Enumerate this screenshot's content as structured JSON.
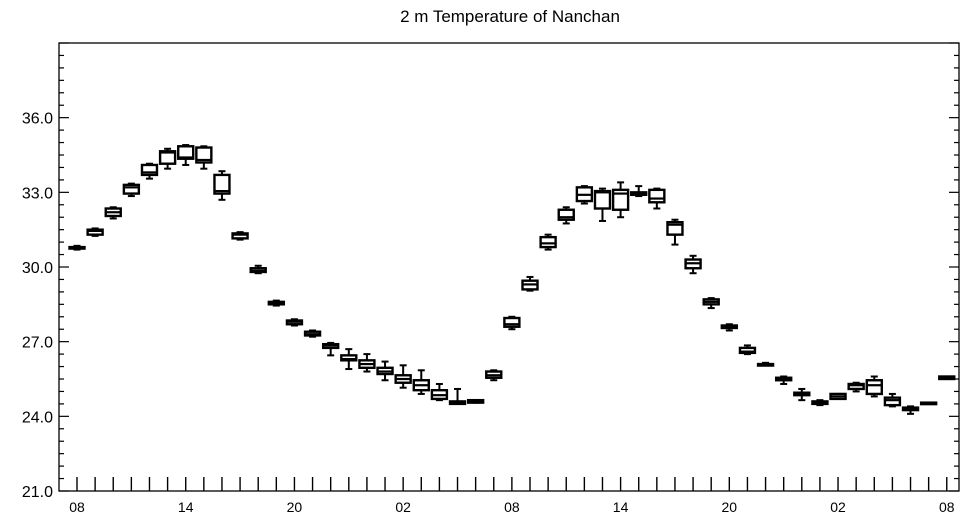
{
  "chart_data": {
    "type": "boxplot",
    "title": "2 m Temperature of Nanchan",
    "xlabel": "",
    "ylabel": "",
    "ylim": [
      21.0,
      39.0
    ],
    "yticks": [
      "21.0",
      "24.0",
      "27.0",
      "30.0",
      "33.0",
      "36.0"
    ],
    "ytick_values": [
      21.0,
      24.0,
      27.0,
      30.0,
      33.0,
      36.0
    ],
    "xticks": [
      "08",
      "14",
      "20",
      "02",
      "08",
      "14",
      "20",
      "02",
      "08"
    ],
    "xtick_hours": [
      0,
      6,
      12,
      18,
      24,
      30,
      36,
      42,
      48
    ],
    "grid": false,
    "legend": "none",
    "boxes": [
      {
        "hour": 0,
        "min": 30.7,
        "q1": 30.75,
        "median": 30.8,
        "q3": 30.8,
        "max": 30.85
      },
      {
        "hour": 1,
        "min": 31.25,
        "q1": 31.3,
        "median": 31.45,
        "q3": 31.5,
        "max": 31.55
      },
      {
        "hour": 2,
        "min": 31.95,
        "q1": 32.05,
        "median": 32.2,
        "q3": 32.35,
        "max": 32.4
      },
      {
        "hour": 3,
        "min": 32.85,
        "q1": 32.95,
        "median": 33.2,
        "q3": 33.3,
        "max": 33.35
      },
      {
        "hour": 4,
        "min": 33.55,
        "q1": 33.7,
        "median": 33.8,
        "q3": 34.1,
        "max": 34.15
      },
      {
        "hour": 5,
        "min": 33.95,
        "q1": 34.15,
        "median": 34.6,
        "q3": 34.65,
        "max": 34.75
      },
      {
        "hour": 6,
        "min": 34.1,
        "q1": 34.35,
        "median": 34.4,
        "q3": 34.85,
        "max": 34.9
      },
      {
        "hour": 7,
        "min": 33.95,
        "q1": 34.2,
        "median": 34.3,
        "q3": 34.8,
        "max": 34.85
      },
      {
        "hour": 8,
        "min": 32.7,
        "q1": 32.95,
        "median": 33.05,
        "q3": 33.7,
        "max": 33.85
      },
      {
        "hour": 9,
        "min": 31.1,
        "q1": 31.15,
        "median": 31.3,
        "q3": 31.35,
        "max": 31.4
      },
      {
        "hour": 10,
        "min": 29.75,
        "q1": 29.8,
        "median": 29.85,
        "q3": 29.95,
        "max": 30.05
      },
      {
        "hour": 11,
        "min": 28.45,
        "q1": 28.5,
        "median": 28.55,
        "q3": 28.6,
        "max": 28.65
      },
      {
        "hour": 12,
        "min": 27.65,
        "q1": 27.7,
        "median": 27.8,
        "q3": 27.85,
        "max": 27.9
      },
      {
        "hour": 13,
        "min": 27.2,
        "q1": 27.25,
        "median": 27.3,
        "q3": 27.4,
        "max": 27.45
      },
      {
        "hour": 14,
        "min": 26.45,
        "q1": 26.75,
        "median": 26.85,
        "q3": 26.9,
        "max": 26.95
      },
      {
        "hour": 15,
        "min": 25.9,
        "q1": 26.25,
        "median": 26.3,
        "q3": 26.45,
        "max": 26.7
      },
      {
        "hour": 16,
        "min": 25.8,
        "q1": 25.95,
        "median": 26.1,
        "q3": 26.25,
        "max": 26.5
      },
      {
        "hour": 17,
        "min": 25.45,
        "q1": 25.7,
        "median": 25.8,
        "q3": 25.95,
        "max": 26.2
      },
      {
        "hour": 18,
        "min": 25.15,
        "q1": 25.35,
        "median": 25.5,
        "q3": 25.65,
        "max": 26.05
      },
      {
        "hour": 19,
        "min": 24.9,
        "q1": 25.05,
        "median": 25.25,
        "q3": 25.45,
        "max": 25.85
      },
      {
        "hour": 20,
        "min": 24.65,
        "q1": 24.7,
        "median": 24.85,
        "q3": 25.05,
        "max": 25.3
      },
      {
        "hour": 21,
        "min": 24.5,
        "q1": 24.5,
        "median": 24.55,
        "q3": 24.6,
        "max": 25.1
      },
      {
        "hour": 22,
        "min": 24.55,
        "q1": 24.55,
        "median": 24.6,
        "q3": 24.65,
        "max": 24.65
      },
      {
        "hour": 23,
        "min": 25.45,
        "q1": 25.55,
        "median": 25.65,
        "q3": 25.8,
        "max": 25.85
      },
      {
        "hour": 24,
        "min": 27.5,
        "q1": 27.6,
        "median": 27.7,
        "q3": 27.95,
        "max": 28.0
      },
      {
        "hour": 25,
        "min": 29.05,
        "q1": 29.1,
        "median": 29.3,
        "q3": 29.45,
        "max": 29.6
      },
      {
        "hour": 26,
        "min": 30.7,
        "q1": 30.8,
        "median": 30.95,
        "q3": 31.2,
        "max": 31.3
      },
      {
        "hour": 27,
        "min": 31.75,
        "q1": 31.9,
        "median": 32.0,
        "q3": 32.3,
        "max": 32.4
      },
      {
        "hour": 28,
        "min": 32.55,
        "q1": 32.65,
        "median": 32.9,
        "q3": 33.2,
        "max": 33.25
      },
      {
        "hour": 29,
        "min": 31.85,
        "q1": 32.35,
        "median": 33.0,
        "q3": 33.05,
        "max": 33.15
      },
      {
        "hour": 30,
        "min": 32.0,
        "q1": 32.3,
        "median": 32.95,
        "q3": 33.1,
        "max": 33.4
      },
      {
        "hour": 31,
        "min": 32.85,
        "q1": 32.9,
        "median": 32.95,
        "q3": 33.0,
        "max": 33.25
      },
      {
        "hour": 32,
        "min": 32.35,
        "q1": 32.6,
        "median": 32.75,
        "q3": 33.1,
        "max": 33.15
      },
      {
        "hour": 33,
        "min": 30.9,
        "q1": 31.3,
        "median": 31.7,
        "q3": 31.8,
        "max": 31.9
      },
      {
        "hour": 34,
        "min": 29.75,
        "q1": 29.95,
        "median": 30.15,
        "q3": 30.3,
        "max": 30.45
      },
      {
        "hour": 35,
        "min": 28.35,
        "q1": 28.5,
        "median": 28.6,
        "q3": 28.7,
        "max": 28.75
      },
      {
        "hour": 36,
        "min": 27.45,
        "q1": 27.55,
        "median": 27.6,
        "q3": 27.65,
        "max": 27.7
      },
      {
        "hour": 37,
        "min": 26.5,
        "q1": 26.55,
        "median": 26.6,
        "q3": 26.75,
        "max": 26.85
      },
      {
        "hour": 38,
        "min": 26.05,
        "q1": 26.05,
        "median": 26.1,
        "q3": 26.1,
        "max": 26.15
      },
      {
        "hour": 39,
        "min": 25.3,
        "q1": 25.45,
        "median": 25.5,
        "q3": 25.55,
        "max": 25.6
      },
      {
        "hour": 40,
        "min": 24.65,
        "q1": 24.85,
        "median": 24.9,
        "q3": 24.95,
        "max": 25.1
      },
      {
        "hour": 41,
        "min": 24.45,
        "q1": 24.5,
        "median": 24.55,
        "q3": 24.6,
        "max": 24.65
      },
      {
        "hour": 42,
        "min": 24.7,
        "q1": 24.7,
        "median": 24.8,
        "q3": 24.9,
        "max": 24.9
      },
      {
        "hour": 43,
        "min": 25.0,
        "q1": 25.1,
        "median": 25.25,
        "q3": 25.3,
        "max": 25.35
      },
      {
        "hour": 44,
        "min": 24.8,
        "q1": 24.9,
        "median": 25.25,
        "q3": 25.45,
        "max": 25.6
      },
      {
        "hour": 45,
        "min": 24.4,
        "q1": 24.45,
        "median": 24.65,
        "q3": 24.75,
        "max": 24.9
      },
      {
        "hour": 46,
        "min": 24.1,
        "q1": 24.25,
        "median": 24.3,
        "q3": 24.35,
        "max": 24.4
      },
      {
        "hour": 47,
        "min": 24.5,
        "q1": 24.5,
        "median": 24.55,
        "q3": 24.55,
        "max": 24.55
      },
      {
        "hour": 48,
        "min": 25.5,
        "q1": 25.5,
        "median": 25.55,
        "q3": 25.6,
        "max": 25.6
      }
    ]
  }
}
